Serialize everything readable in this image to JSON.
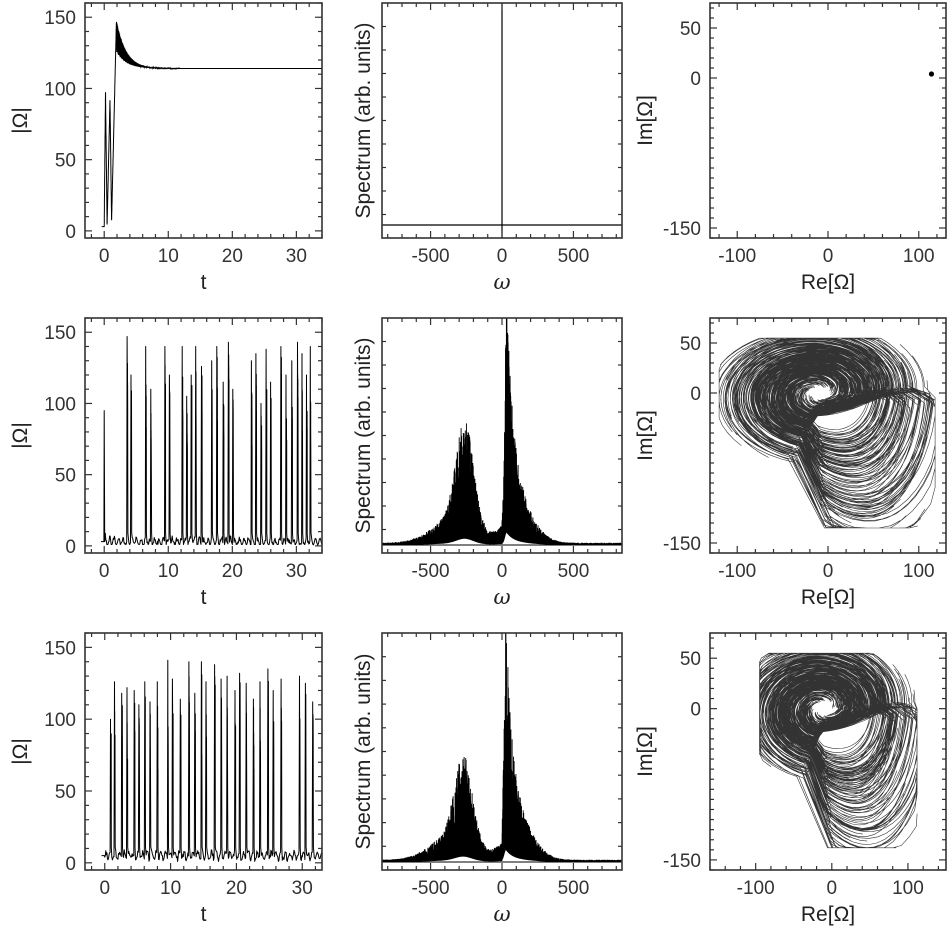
{
  "chart_data": [
    {
      "panel": "r1c1",
      "type": "line",
      "xlabel": "t",
      "ylabel": "|Ω|",
      "xlim": [
        -3,
        34
      ],
      "ylim": [
        -5,
        160
      ],
      "xticks": [
        "0",
        "10",
        "20",
        "30"
      ],
      "yticks": [
        "0",
        "50",
        "100",
        "150"
      ],
      "signal": "transient-then-steady",
      "steady_value": 114,
      "peak_value": 148,
      "grid": false
    },
    {
      "panel": "r1c2",
      "type": "line",
      "xlabel": "ω",
      "ylabel": "Spectrum (arb. units)",
      "xlim": [
        -840,
        840
      ],
      "xticks": [
        "-500",
        "0",
        "500"
      ],
      "yticks": [],
      "signal": "delta-at-zero",
      "grid": false
    },
    {
      "panel": "r1c3",
      "type": "scatter",
      "xlabel": "Re[Ω]",
      "ylabel": "Im[Ω]",
      "xlim": [
        -130,
        130
      ],
      "ylim": [
        -160,
        75
      ],
      "xticks": [
        "-100",
        "0",
        "100"
      ],
      "yticks": [
        "50",
        "0",
        "-150"
      ],
      "points": [
        {
          "x": 114,
          "y": 4
        }
      ],
      "grid": false
    },
    {
      "panel": "r2c1",
      "type": "line",
      "xlabel": "t",
      "ylabel": "|Ω|",
      "xlim": [
        -3,
        34
      ],
      "ylim": [
        -5,
        160
      ],
      "xticks": [
        "0",
        "10",
        "20",
        "30"
      ],
      "yticks": [
        "0",
        "50",
        "100",
        "150"
      ],
      "initial_value": 95,
      "baseline": 3,
      "spike_times": [
        3.6,
        4.2,
        6.5,
        7.3,
        9.5,
        10.2,
        12.2,
        12.9,
        13.6,
        14.3,
        15.2,
        16.8,
        17.6,
        18.6,
        19.4,
        20.1,
        23.0,
        23.7,
        24.5,
        25.3,
        26.0,
        27.6,
        28.4,
        29.3,
        30.2,
        30.9,
        31.6,
        32.2
      ],
      "spike_peaks": [
        147,
        120,
        140,
        110,
        140,
        120,
        140,
        105,
        120,
        140,
        126,
        130,
        140,
        115,
        143,
        110,
        130,
        135,
        100,
        138,
        115,
        140,
        120,
        130,
        143,
        135,
        120,
        140
      ],
      "grid": false
    },
    {
      "panel": "r2c2",
      "type": "line",
      "xlabel": "ω",
      "ylabel": "Spectrum (arb. units)",
      "xlim": [
        -840,
        840
      ],
      "xticks": [
        "-500",
        "0",
        "500"
      ],
      "yticks": [],
      "peaks": [
        {
          "x": -260,
          "height": 0.44
        },
        {
          "x": 35,
          "height": 0.99
        }
      ],
      "grid": false
    },
    {
      "panel": "r2c3",
      "type": "line",
      "xlabel": "Re[Ω]",
      "ylabel": "Im[Ω]",
      "xlim": [
        -130,
        130
      ],
      "ylim": [
        -160,
        75
      ],
      "xticks": [
        "-100",
        "0",
        "100"
      ],
      "yticks": [
        "50",
        "0",
        "-150"
      ],
      "signal": "spiral-attractor",
      "attractor_center": [
        -10,
        0
      ],
      "attractor_extent": {
        "x": [
          -120,
          118
        ],
        "y": [
          -135,
          55
        ]
      },
      "grid": false
    },
    {
      "panel": "r3c1",
      "type": "line",
      "xlabel": "t",
      "ylabel": "|Ω|",
      "xlim": [
        -3,
        33
      ],
      "ylim": [
        -5,
        160
      ],
      "xticks": [
        "0",
        "10",
        "20",
        "30"
      ],
      "yticks": [
        "0",
        "50",
        "100",
        "150"
      ],
      "initial_value": 4,
      "baseline": 5,
      "spike_times": [
        0.9,
        1.5,
        2.6,
        3.4,
        4.5,
        5.2,
        6.1,
        6.9,
        8.0,
        9.6,
        10.3,
        11.5,
        12.8,
        13.7,
        14.7,
        15.4,
        16.7,
        17.7,
        18.6,
        19.8,
        20.5,
        21.5,
        22.6,
        23.6,
        24.8,
        25.6,
        26.8,
        29.6,
        30.5,
        31.6
      ],
      "spike_peaks": [
        100,
        126,
        118,
        122,
        120,
        110,
        126,
        112,
        126,
        141,
        128,
        114,
        140,
        118,
        140,
        126,
        138,
        128,
        130,
        120,
        132,
        125,
        114,
        126,
        135,
        120,
        128,
        130,
        125,
        112
      ],
      "grid": false
    },
    {
      "panel": "r3c2",
      "type": "line",
      "xlabel": "ω",
      "ylabel": "Spectrum (arb. units)",
      "xlim": [
        -840,
        840
      ],
      "xticks": [
        "-500",
        "0",
        "500"
      ],
      "yticks": [],
      "peaks": [
        {
          "x": -270,
          "height": 0.36
        },
        {
          "x": 30,
          "height": 0.95
        }
      ],
      "grid": false
    },
    {
      "panel": "r3c3",
      "type": "line",
      "xlabel": "Re[Ω]",
      "ylabel": "Im[Ω]",
      "xlim": [
        -160,
        150
      ],
      "ylim": [
        -160,
        75
      ],
      "xticks": [
        "-100",
        "0",
        "100"
      ],
      "yticks": [
        "50",
        "0",
        "-150"
      ],
      "signal": "spiral-attractor",
      "attractor_center": [
        -10,
        0
      ],
      "attractor_extent": {
        "x": [
          -95,
          112
        ],
        "y": [
          -138,
          55
        ]
      },
      "grid": false
    }
  ],
  "style": {
    "line_color": "#000000",
    "frame_color": "#333333",
    "background": "#ffffff"
  }
}
